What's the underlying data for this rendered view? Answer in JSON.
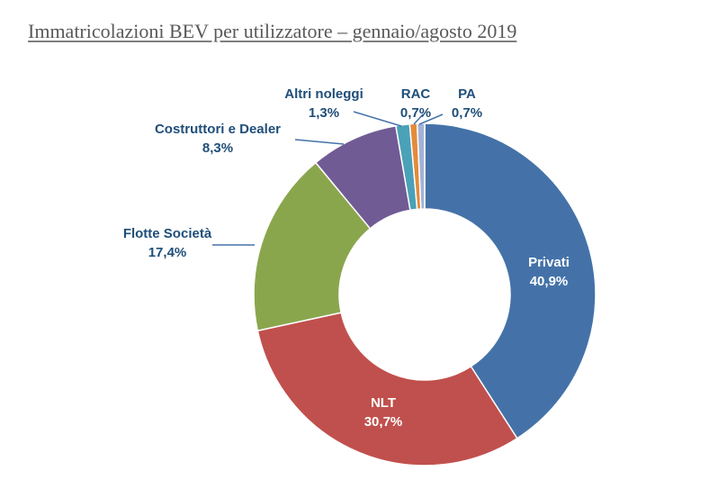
{
  "chart_data": {
    "type": "pie",
    "subtype": "donut",
    "title": "Immatricolazioni BEV per utilizzatore – gennaio/agosto 2019",
    "legend": "none",
    "slices": [
      {
        "label": "Privati",
        "value": 40.9,
        "value_label": "40,9%",
        "color": "#4472a8"
      },
      {
        "label": "NLT",
        "value": 30.7,
        "value_label": "30,7%",
        "color": "#c0504d"
      },
      {
        "label": "Flotte Società",
        "value": 17.4,
        "value_label": "17,4%",
        "color": "#8aa64d"
      },
      {
        "label": "Costruttori e Dealer",
        "value": 8.3,
        "value_label": "8,3%",
        "color": "#715b94"
      },
      {
        "label": "Altri noleggi",
        "value": 1.3,
        "value_label": "1,3%",
        "color": "#4aa1b8"
      },
      {
        "label": "RAC",
        "value": 0.7,
        "value_label": "0,7%",
        "color": "#e48a3c"
      },
      {
        "label": "PA",
        "value": 0.7,
        "value_label": "0,7%",
        "color": "#a4b2d6"
      }
    ]
  }
}
